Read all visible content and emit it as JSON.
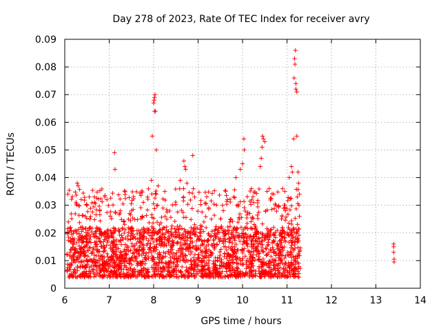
{
  "chart_data": {
    "type": "scatter",
    "title": "Day 278 of 2023, Rate Of TEC Index for receiver avry",
    "xlabel": "GPS time / hours",
    "ylabel": "ROTI / TECUs",
    "xlim": [
      6,
      14
    ],
    "ylim": [
      0,
      0.09
    ],
    "xticks": [
      6,
      7,
      8,
      9,
      10,
      11,
      12,
      13,
      14
    ],
    "yticks": [
      0,
      0.01,
      0.02,
      0.03,
      0.04,
      0.05,
      0.06,
      0.07,
      0.08,
      0.09
    ],
    "ytick_labels": [
      "0",
      "0.01",
      "0.02",
      "0.03",
      "0.04",
      "0.05",
      "0.06",
      "0.07",
      "0.08",
      "0.09"
    ],
    "grid": true,
    "marker": "+",
    "color": "#ff0000",
    "series": [
      {
        "name": "ROTI",
        "dense_band": {
          "x_start": 6.05,
          "x_end": 11.3,
          "y_core_min": 0.004,
          "y_core_max": 0.022,
          "y_upper_max": 0.036
        },
        "points": [
          [
            6.07,
            0.034
          ],
          [
            6.08,
            0.024
          ],
          [
            6.28,
            0.038
          ],
          [
            6.3,
            0.037
          ],
          [
            6.5,
            0.03
          ],
          [
            6.55,
            0.033
          ],
          [
            6.9,
            0.033
          ],
          [
            6.95,
            0.032
          ],
          [
            7.12,
            0.049
          ],
          [
            7.13,
            0.043
          ],
          [
            7.25,
            0.028
          ],
          [
            7.5,
            0.028
          ],
          [
            7.95,
            0.039
          ],
          [
            7.97,
            0.055
          ],
          [
            8.0,
            0.067
          ],
          [
            8.01,
            0.068
          ],
          [
            8.02,
            0.069
          ],
          [
            8.03,
            0.07
          ],
          [
            8.02,
            0.064
          ],
          [
            8.04,
            0.064
          ],
          [
            8.06,
            0.05
          ],
          [
            8.1,
            0.037
          ],
          [
            8.25,
            0.035
          ],
          [
            8.6,
            0.039
          ],
          [
            8.68,
            0.046
          ],
          [
            8.7,
            0.044
          ],
          [
            8.72,
            0.043
          ],
          [
            8.75,
            0.038
          ],
          [
            8.88,
            0.048
          ],
          [
            9.3,
            0.025
          ],
          [
            9.55,
            0.03
          ],
          [
            9.8,
            0.033
          ],
          [
            9.85,
            0.04
          ],
          [
            9.95,
            0.043
          ],
          [
            10.0,
            0.045
          ],
          [
            10.03,
            0.054
          ],
          [
            10.04,
            0.05
          ],
          [
            10.2,
            0.036
          ],
          [
            10.25,
            0.031
          ],
          [
            10.4,
            0.044
          ],
          [
            10.42,
            0.047
          ],
          [
            10.44,
            0.051
          ],
          [
            10.45,
            0.055
          ],
          [
            10.47,
            0.054
          ],
          [
            10.5,
            0.053
          ],
          [
            10.6,
            0.036
          ],
          [
            10.7,
            0.034
          ],
          [
            10.75,
            0.03
          ],
          [
            10.9,
            0.036
          ],
          [
            10.95,
            0.035
          ],
          [
            11.05,
            0.04
          ],
          [
            11.1,
            0.044
          ],
          [
            11.12,
            0.042
          ],
          [
            11.15,
            0.054
          ],
          [
            11.16,
            0.076
          ],
          [
            11.17,
            0.083
          ],
          [
            11.18,
            0.081
          ],
          [
            11.19,
            0.086
          ],
          [
            11.2,
            0.074
          ],
          [
            11.2,
            0.072
          ],
          [
            11.22,
            0.071
          ],
          [
            11.22,
            0.055
          ],
          [
            11.23,
            0.033
          ],
          [
            11.25,
            0.042
          ],
          [
            11.26,
            0.038
          ],
          [
            11.27,
            0.03
          ],
          [
            11.28,
            0.026
          ],
          [
            13.4,
            0.016
          ],
          [
            13.4,
            0.015
          ],
          [
            13.4,
            0.013
          ],
          [
            13.41,
            0.0105
          ],
          [
            13.41,
            0.0095
          ]
        ]
      }
    ]
  }
}
